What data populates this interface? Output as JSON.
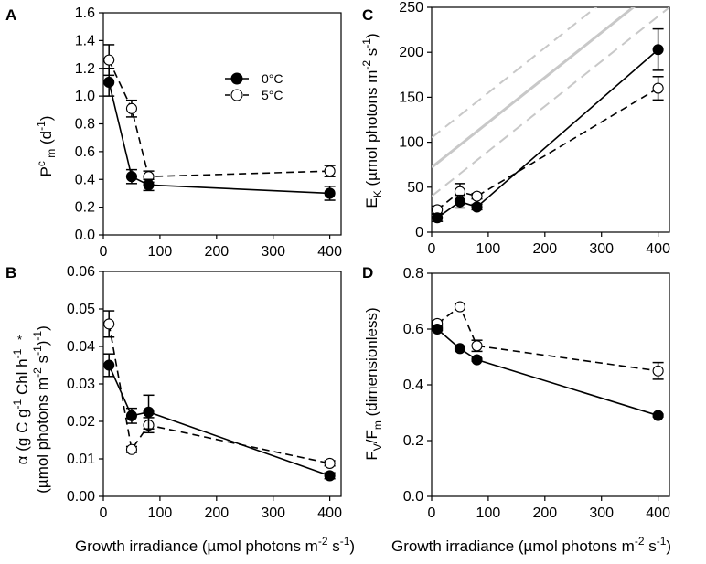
{
  "xlabel_main": "Growth irradiance (µmol photons m",
  "xlabel_exp": "-2",
  "xlabel_tail": " s",
  "xlabel_tail_exp": "-1",
  "xlabel_close": ")",
  "legend": {
    "series0": "0°C",
    "series5": "5°C"
  },
  "colors": {
    "filled": "#000000",
    "open": "#ffffff",
    "ref": "#c8c8c8"
  },
  "chart_data": [
    {
      "panel": "A",
      "type": "line",
      "title": "",
      "ylabel": "Pᶜₘ (d⁻¹)",
      "ylim": [
        0,
        1.6
      ],
      "yticks": [
        "0.0",
        "0.2",
        "0.4",
        "0.6",
        "0.8",
        "1.0",
        "1.2",
        "1.4",
        "1.6"
      ],
      "xlim": [
        0,
        420
      ],
      "xticks": [
        "0",
        "100",
        "200",
        "300",
        "400"
      ],
      "legend_position": "top-right",
      "series": [
        {
          "name": "0°C",
          "marker": "filled",
          "dash": false,
          "x": [
            10,
            50,
            80,
            400
          ],
          "y": [
            1.1,
            0.42,
            0.36,
            0.3
          ],
          "err": [
            0.1,
            0.05,
            0.04,
            0.05
          ]
        },
        {
          "name": "5°C",
          "marker": "open",
          "dash": true,
          "x": [
            10,
            50,
            80,
            400
          ],
          "y": [
            1.26,
            0.91,
            0.42,
            0.46
          ],
          "err": [
            0.11,
            0.06,
            0.04,
            0.04
          ]
        }
      ]
    },
    {
      "panel": "B",
      "type": "line",
      "title": "",
      "ylabel": "α* (g C g⁻¹ Chl h⁻¹ (µmol photons m⁻² s⁻¹)⁻¹)",
      "ylim": [
        0,
        0.06
      ],
      "yticks": [
        "0.00",
        "0.01",
        "0.02",
        "0.03",
        "0.04",
        "0.05",
        "0.06"
      ],
      "xlim": [
        0,
        420
      ],
      "xticks": [
        "0",
        "100",
        "200",
        "300",
        "400"
      ],
      "series": [
        {
          "name": "0°C",
          "marker": "filled",
          "dash": false,
          "x": [
            10,
            50,
            80,
            400
          ],
          "y": [
            0.035,
            0.0215,
            0.0225,
            0.0055
          ],
          "err": [
            0.003,
            0.002,
            0.0045,
            0.0008
          ]
        },
        {
          "name": "5°C",
          "marker": "open",
          "dash": true,
          "x": [
            10,
            50,
            80,
            400
          ],
          "y": [
            0.046,
            0.0125,
            0.019,
            0.0088
          ],
          "err": [
            0.0035,
            0.0008,
            0.002,
            0.0007
          ]
        }
      ]
    },
    {
      "panel": "C",
      "type": "line",
      "title": "",
      "ylabel": "Eₖ (µmol photons m⁻² s⁻¹)",
      "ylim": [
        0,
        250
      ],
      "yticks": [
        "0",
        "50",
        "100",
        "150",
        "200",
        "250"
      ],
      "xlim": [
        0,
        420
      ],
      "xticks": [
        "0",
        "100",
        "200",
        "300",
        "400"
      ],
      "reference_lines": [
        {
          "style": "solid",
          "x": [
            0,
            420
          ],
          "y": [
            72,
            282
          ]
        },
        {
          "style": "dashed",
          "x": [
            0,
            420
          ],
          "y": [
            105,
            315
          ]
        },
        {
          "style": "dashed",
          "x": [
            0,
            420
          ],
          "y": [
            40,
            250
          ]
        }
      ],
      "series": [
        {
          "name": "0°C",
          "marker": "filled",
          "dash": false,
          "x": [
            10,
            50,
            80,
            400
          ],
          "y": [
            16,
            34,
            28,
            203
          ],
          "err": [
            4,
            7,
            3,
            23
          ]
        },
        {
          "name": "5°C",
          "marker": "open",
          "dash": true,
          "x": [
            10,
            50,
            80,
            400
          ],
          "y": [
            25,
            45,
            40,
            160
          ],
          "err": [
            4,
            9,
            3,
            13
          ]
        }
      ]
    },
    {
      "panel": "D",
      "type": "line",
      "title": "",
      "ylabel": "Fᵥ/Fₘ (dimensionless)",
      "ylim": [
        0,
        0.8
      ],
      "yticks": [
        "0.0",
        "0.2",
        "0.4",
        "0.6",
        "0.8"
      ],
      "xlim": [
        0,
        420
      ],
      "xticks": [
        "0",
        "100",
        "200",
        "300",
        "400"
      ],
      "series": [
        {
          "name": "0°C",
          "marker": "filled",
          "dash": false,
          "x": [
            10,
            50,
            80,
            400
          ],
          "y": [
            0.6,
            0.53,
            0.49,
            0.29
          ],
          "err": [
            0.005,
            0.005,
            0.005,
            0.005
          ]
        },
        {
          "name": "5°C",
          "marker": "open",
          "dash": true,
          "x": [
            10,
            50,
            80,
            400
          ],
          "y": [
            0.62,
            0.68,
            0.54,
            0.45
          ],
          "err": [
            0.01,
            0.01,
            0.02,
            0.03
          ]
        }
      ]
    }
  ]
}
